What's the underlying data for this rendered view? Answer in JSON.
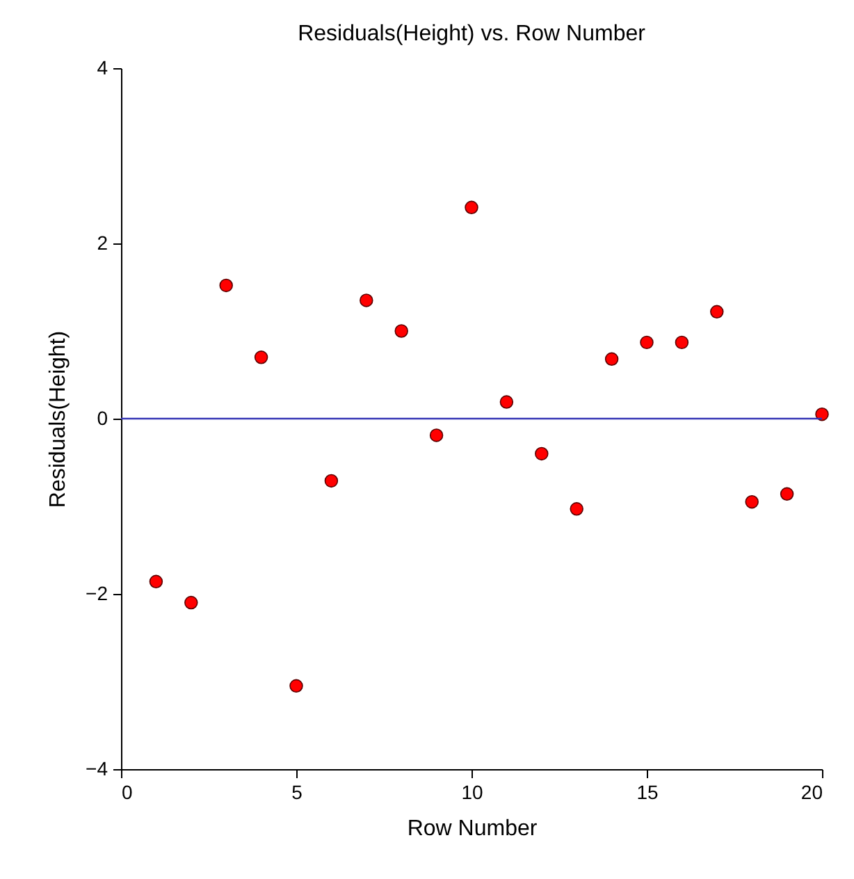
{
  "chart_data": {
    "type": "scatter",
    "title": "Residuals(Height) vs. Row Number",
    "xlabel": "Row Number",
    "ylabel": "Residuals(Height)",
    "x": [
      1,
      2,
      3,
      4,
      5,
      6,
      7,
      8,
      9,
      10,
      11,
      12,
      13,
      14,
      15,
      16,
      17,
      18,
      19,
      20
    ],
    "series": [
      {
        "color": "#ff0000",
        "values": [
          -1.86,
          -2.1,
          1.52,
          0.7,
          -3.05,
          -0.71,
          1.35,
          1.0,
          -0.19,
          2.41,
          0.19,
          -0.4,
          -1.03,
          0.68,
          0.87,
          0.87,
          1.22,
          -0.95,
          -0.86,
          0.05
        ]
      }
    ],
    "xlim": [
      0,
      20
    ],
    "xticks": [
      0,
      5,
      10,
      15,
      20
    ],
    "ylim": [
      -4,
      4
    ],
    "yticks": [
      -4,
      -2,
      0,
      2,
      4
    ],
    "ref_lines": [
      {
        "axis": "y",
        "value": 0,
        "color": "#3535b5",
        "line_style": "solid"
      }
    ],
    "marker": "circle",
    "grid": false
  }
}
